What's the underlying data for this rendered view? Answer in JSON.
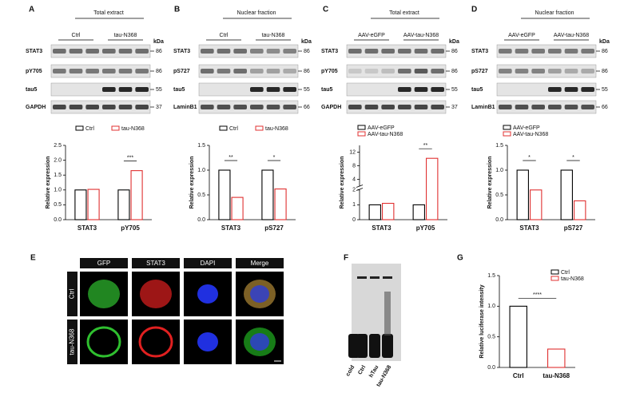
{
  "panels": [
    "A",
    "B",
    "C",
    "D",
    "E",
    "F",
    "G"
  ],
  "blots": [
    {
      "header": "Total extract",
      "groups": [
        "Ctrl",
        "tau-N368"
      ],
      "unit": "kDa",
      "rows": [
        {
          "label": "STAT3",
          "size": 86
        },
        {
          "label": "pY705",
          "size": 86
        },
        {
          "label": "tau5",
          "size": 55
        },
        {
          "label": "GAPDH",
          "size": 37
        }
      ]
    },
    {
      "header": "Nuclear fraction",
      "groups": [
        "Ctrl",
        "tau-N368"
      ],
      "unit": "kDa",
      "rows": [
        {
          "label": "STAT3",
          "size": 86
        },
        {
          "label": "pS727",
          "size": 86
        },
        {
          "label": "tau5",
          "size": 55
        },
        {
          "label": "LaminB1",
          "size": 66
        }
      ]
    },
    {
      "header": "Total extract",
      "groups": [
        "AAV-eGFP",
        "AAV-tau-N368"
      ],
      "unit": "kDa",
      "rows": [
        {
          "label": "STAT3",
          "size": 86
        },
        {
          "label": "pY705",
          "size": 86
        },
        {
          "label": "tau5",
          "size": 55
        },
        {
          "label": "GAPDH",
          "size": 37
        }
      ]
    },
    {
      "header": "Nuclear fraction",
      "groups": [
        "AAV-eGFP",
        "AAV-tau-N368"
      ],
      "unit": "kDa",
      "rows": [
        {
          "label": "STAT3",
          "size": 86
        },
        {
          "label": "pS727",
          "size": 86
        },
        {
          "label": "tau5",
          "size": 55
        },
        {
          "label": "LaminB1",
          "size": 66
        }
      ]
    }
  ],
  "chart_data": [
    {
      "type": "bar",
      "ylabel": "Relative expression",
      "categories": [
        "STAT3",
        "pY705"
      ],
      "series": [
        {
          "name": "Ctrl",
          "color": "#000000",
          "values": [
            1.0,
            1.0
          ]
        },
        {
          "name": "tau-N368",
          "color": "#e03030",
          "values": [
            1.02,
            1.65
          ]
        }
      ],
      "ylim": [
        0,
        2.5
      ],
      "yticks": [
        {
          "value": 0,
          "label": "0.0"
        },
        0.5,
        {
          "value": 1,
          "label": "1.0"
        },
        1.5,
        {
          "value": 2,
          "label": "2.0"
        },
        2.5
      ],
      "significance": [
        null,
        "***"
      ]
    },
    {
      "type": "bar",
      "ylabel": "Relative expression",
      "categories": [
        "STAT3",
        "pS727"
      ],
      "series": [
        {
          "name": "Ctrl",
          "color": "#000000",
          "values": [
            1.0,
            1.0
          ]
        },
        {
          "name": "tau-N368",
          "color": "#e03030",
          "values": [
            0.45,
            0.62
          ]
        }
      ],
      "ylim": [
        0,
        1.5
      ],
      "yticks": [
        {
          "value": 0,
          "label": "0.0"
        },
        0.5,
        {
          "value": 1,
          "label": "1.0"
        },
        1.5
      ],
      "significance": [
        "**",
        "*"
      ]
    },
    {
      "type": "bar",
      "ylabel": "Relative expression",
      "categories": [
        "STAT3",
        "pY705"
      ],
      "series": [
        {
          "name": "AAV-eGFP",
          "color": "#000000",
          "values": [
            1.0,
            1.0
          ]
        },
        {
          "name": "AAV-tau-N368",
          "color": "#e03030",
          "values": [
            1.1,
            10.2
          ]
        }
      ],
      "ylim": [
        0,
        14
      ],
      "ybreak": 2,
      "yticks": [
        0,
        1,
        2,
        4,
        8,
        12
      ],
      "significance": [
        null,
        "**"
      ]
    },
    {
      "type": "bar",
      "ylabel": "Relative expression",
      "categories": [
        "STAT3",
        "pS727"
      ],
      "series": [
        {
          "name": "AAV-eGFP",
          "color": "#000000",
          "values": [
            1.0,
            1.0
          ]
        },
        {
          "name": "AAV-tau-N368",
          "color": "#e03030",
          "values": [
            0.6,
            0.38
          ]
        }
      ],
      "ylim": [
        0,
        1.5
      ],
      "yticks": [
        {
          "value": 0,
          "label": "0.0"
        },
        0.5,
        {
          "value": 1,
          "label": "1.0"
        },
        1.5
      ],
      "significance": [
        "*",
        "*"
      ]
    },
    {
      "type": "bar",
      "ylabel": "Relative luciferase intensity",
      "categories": [
        "Ctrl",
        "tau-N368"
      ],
      "values": [
        1.0,
        0.3
      ],
      "colors": [
        "#000000",
        "#e03030"
      ],
      "ylim": [
        0,
        1.5
      ],
      "yticks": [
        {
          "value": 0,
          "label": "0.0"
        },
        0.5,
        {
          "value": 1,
          "label": "1.0"
        },
        1.5
      ],
      "significance": "****"
    }
  ],
  "imaging": {
    "columns": [
      "GFP",
      "STAT3",
      "DAPI",
      "Merge"
    ],
    "rows": [
      "Ctrl",
      "tau-N368"
    ],
    "scale_bar": "1 μm"
  },
  "gel": {
    "lanes": [
      "cold",
      "Ctrl",
      "hTau",
      "tau-N368"
    ]
  }
}
